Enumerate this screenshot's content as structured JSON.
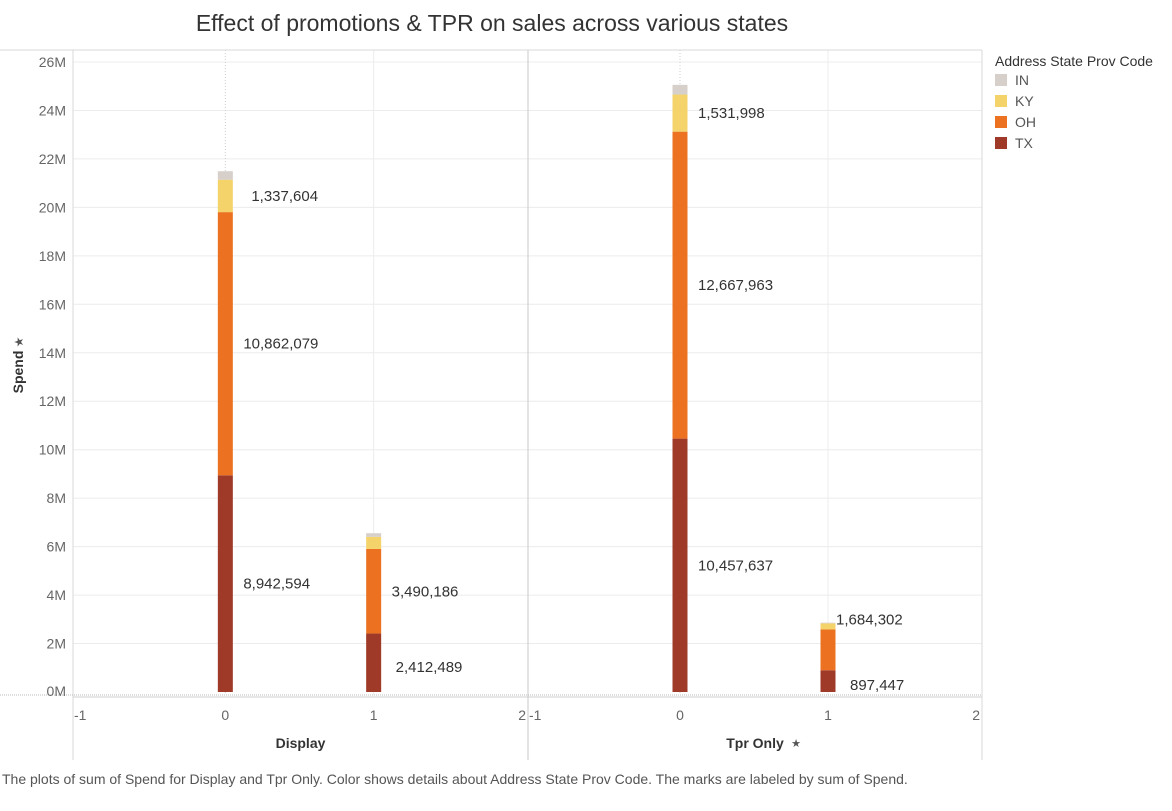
{
  "title": "Effect of promotions & TPR on sales across various states",
  "colors": {
    "IN": "#d6cfca",
    "KY": "#f4d36b",
    "OH": "#ec7221",
    "TX": "#9f3a28",
    "grid": "#ececec",
    "axis": "#999999"
  },
  "legend": {
    "title": "Address State Prov Code",
    "items": [
      {
        "key": "IN",
        "label": "IN"
      },
      {
        "key": "KY",
        "label": "KY"
      },
      {
        "key": "OH",
        "label": "OH"
      },
      {
        "key": "TX",
        "label": "TX"
      }
    ]
  },
  "caption": "The plots of sum of Spend for Display and Tpr Only.  Color shows details about Address State Prov Code.  The marks are labeled by sum of Spend.",
  "chart_data": {
    "type": "bar",
    "stacked": true,
    "title": "Effect of promotions & TPR on sales across various states",
    "ylabel": "Spend",
    "ylim": [
      0,
      26000000
    ],
    "yticks": [
      0,
      2000000,
      4000000,
      6000000,
      8000000,
      10000000,
      12000000,
      14000000,
      16000000,
      18000000,
      20000000,
      22000000,
      24000000,
      26000000
    ],
    "ytick_labels": [
      "0M",
      "2M",
      "4M",
      "6M",
      "8M",
      "10M",
      "12M",
      "14M",
      "16M",
      "18M",
      "20M",
      "22M",
      "24M",
      "26M"
    ],
    "xlim": [
      -1,
      2
    ],
    "xticks": [
      -1,
      0,
      1,
      2
    ],
    "xtick_labels": [
      "-1",
      "0",
      "1",
      "2"
    ],
    "grid": true,
    "legend_position": "right",
    "series_order": [
      "TX",
      "OH",
      "KY",
      "IN"
    ],
    "panels": [
      {
        "name": "Display",
        "xlabel": "Display",
        "bars": [
          {
            "x": 0,
            "TX": 8942594,
            "OH": 10862079,
            "KY": 1337604,
            "IN": 350000
          },
          {
            "x": 1,
            "TX": 2412489,
            "OH": 3490186,
            "KY": 500000,
            "IN": 150000
          }
        ]
      },
      {
        "name": "Tpr Only",
        "xlabel": "Tpr Only",
        "bars": [
          {
            "x": 0,
            "TX": 10457637,
            "OH": 12667963,
            "KY": 1531998,
            "IN": 400000
          },
          {
            "x": 1,
            "TX": 897447,
            "OH": 1684302,
            "KY": 250000,
            "IN": 30000
          }
        ]
      }
    ],
    "labels": [
      {
        "panel": 0,
        "x": 0,
        "series": "KY",
        "text": "1,337,604"
      },
      {
        "panel": 0,
        "x": 0,
        "series": "OH",
        "text": "10,862,079"
      },
      {
        "panel": 0,
        "x": 0,
        "series": "TX",
        "text": "8,942,594"
      },
      {
        "panel": 0,
        "x": 1,
        "series": "OH",
        "text": "3,490,186"
      },
      {
        "panel": 0,
        "x": 1,
        "series": "TX",
        "text": "2,412,489"
      },
      {
        "panel": 1,
        "x": 0,
        "series": "KY",
        "text": "1,531,998"
      },
      {
        "panel": 1,
        "x": 0,
        "series": "OH",
        "text": "12,667,963"
      },
      {
        "panel": 1,
        "x": 0,
        "series": "TX",
        "text": "10,457,637"
      },
      {
        "panel": 1,
        "x": 1,
        "series": "OH",
        "text": "1,684,302"
      },
      {
        "panel": 1,
        "x": 1,
        "series": "TX",
        "text": "897,447"
      }
    ],
    "pinned_axis_labels": [
      "Spend",
      "Tpr Only"
    ]
  }
}
